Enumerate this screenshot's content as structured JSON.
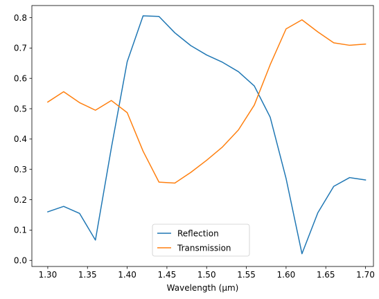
{
  "chart_data": {
    "type": "line",
    "title": "",
    "xlabel": "Wavelength (μm)",
    "ylabel": "",
    "xlim": [
      1.28,
      1.71
    ],
    "ylim": [
      -0.02,
      0.84
    ],
    "xticks": [
      1.3,
      1.35,
      1.4,
      1.45,
      1.5,
      1.55,
      1.6,
      1.65,
      1.7
    ],
    "xtick_labels": [
      "1.30",
      "1.35",
      "1.40",
      "1.45",
      "1.50",
      "1.55",
      "1.60",
      "1.65",
      "1.70"
    ],
    "yticks": [
      0.0,
      0.1,
      0.2,
      0.3,
      0.4,
      0.5,
      0.6,
      0.7,
      0.8
    ],
    "ytick_labels": [
      "0.0",
      "0.1",
      "0.2",
      "0.3",
      "0.4",
      "0.5",
      "0.6",
      "0.7",
      "0.8"
    ],
    "grid": false,
    "legend_position": "bottom-center",
    "x": [
      1.3,
      1.32,
      1.34,
      1.36,
      1.38,
      1.4,
      1.42,
      1.44,
      1.46,
      1.48,
      1.5,
      1.52,
      1.54,
      1.56,
      1.58,
      1.6,
      1.62,
      1.64,
      1.66,
      1.68,
      1.7
    ],
    "series": [
      {
        "name": "Reflection",
        "color": "#1f77b4",
        "values": [
          0.16,
          0.178,
          0.155,
          0.067,
          0.37,
          0.655,
          0.806,
          0.804,
          0.75,
          0.708,
          0.677,
          0.653,
          0.622,
          0.575,
          0.472,
          0.27,
          0.022,
          0.157,
          0.244,
          0.273,
          0.265
        ]
      },
      {
        "name": "Transmission",
        "color": "#ff7f0e",
        "values": [
          0.522,
          0.556,
          0.52,
          0.495,
          0.527,
          0.487,
          0.36,
          0.258,
          0.255,
          0.29,
          0.33,
          0.374,
          0.43,
          0.512,
          0.645,
          0.763,
          0.793,
          0.753,
          0.717,
          0.709,
          0.713
        ]
      }
    ]
  }
}
